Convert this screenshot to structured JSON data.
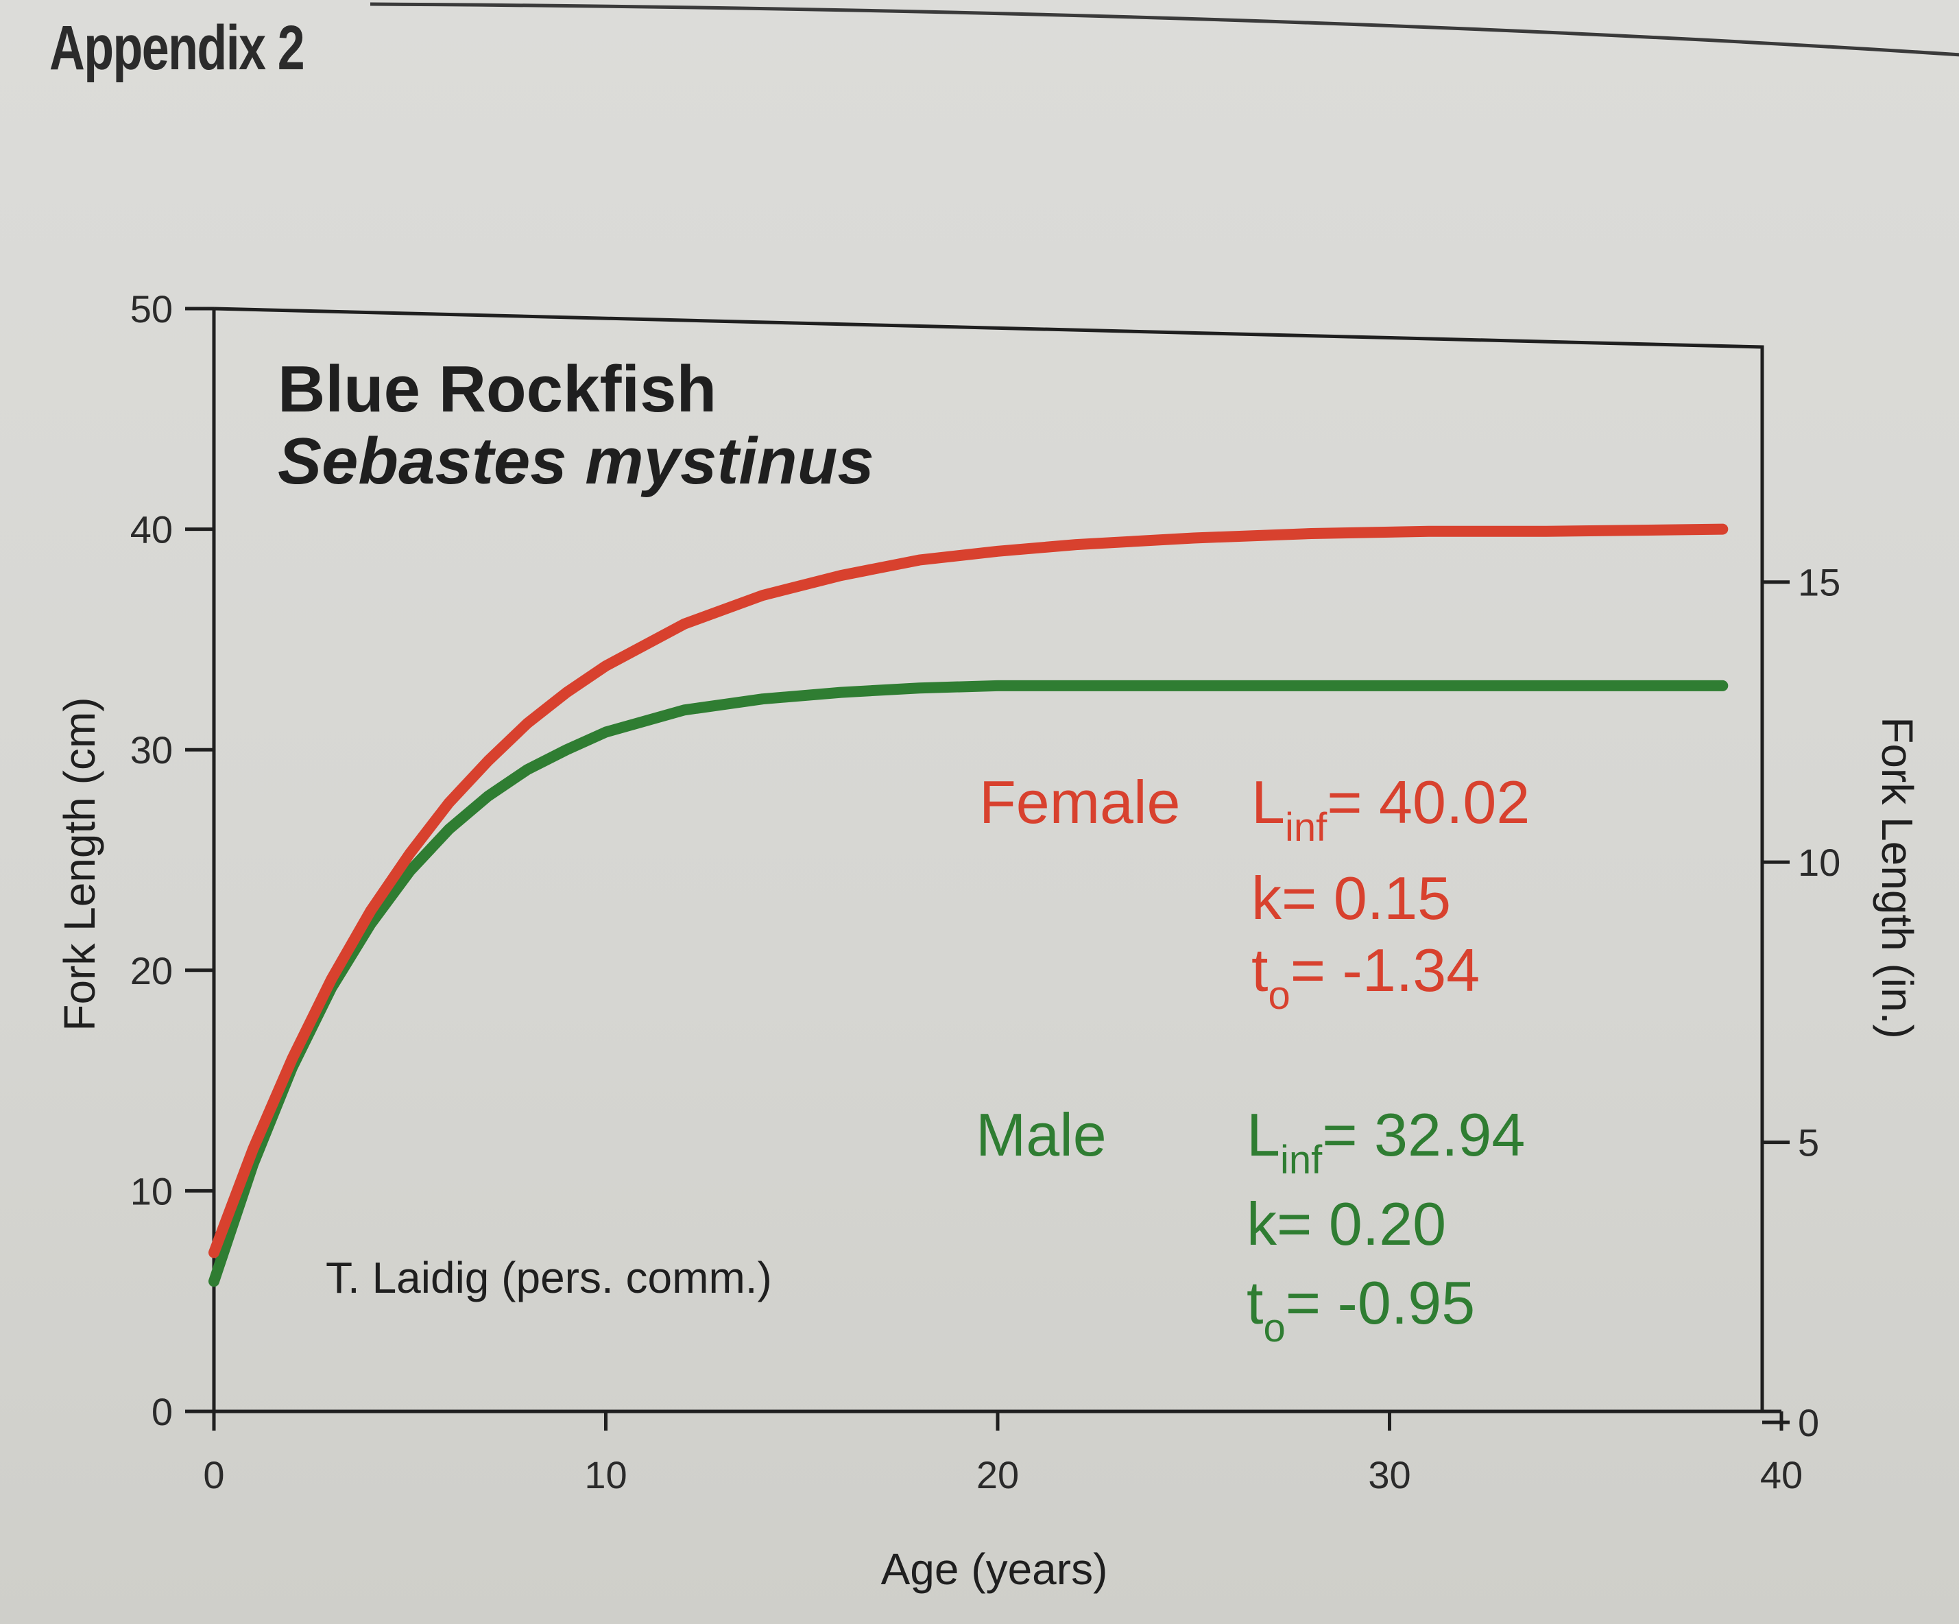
{
  "page": {
    "heading": "Appendix 2"
  },
  "colors": {
    "female": "#d8412e",
    "male": "#2f7d32",
    "axis": "#1f1f1f"
  },
  "chart_data": {
    "type": "line",
    "title": "Blue Rockfish",
    "subtitle": "Sebastes mystinus",
    "xlabel": "Age (years)",
    "ylabel": "Fork Length (cm)",
    "ylabel_right": "Fork Length (in.)",
    "xlim": [
      0,
      40
    ],
    "ylim": [
      0,
      50
    ],
    "ylim_right_in": [
      0,
      19.685
    ],
    "x_ticks": [
      "0",
      "10",
      "20",
      "30",
      "40"
    ],
    "y_ticks": [
      "0",
      "10",
      "20",
      "30",
      "40",
      "50"
    ],
    "y_right_ticks": [
      "0",
      "5",
      "10",
      "15"
    ],
    "grid": false,
    "series": [
      {
        "name": "Female",
        "color": "#d8412e",
        "x": [
          0,
          1,
          2,
          3,
          4,
          5,
          6,
          7,
          8,
          9,
          10,
          12,
          14,
          16,
          18,
          20,
          22,
          25,
          28,
          31,
          34,
          38.5
        ],
        "y": [
          7.2,
          11.9,
          16.0,
          19.6,
          22.7,
          25.3,
          27.6,
          29.5,
          31.2,
          32.6,
          33.8,
          35.7,
          37.0,
          37.9,
          38.6,
          39.0,
          39.3,
          39.6,
          39.8,
          39.9,
          39.9,
          40.0
        ]
      },
      {
        "name": "Male",
        "color": "#2f7d32",
        "x": [
          0,
          1,
          2,
          3,
          4,
          5,
          6,
          7,
          8,
          9,
          10,
          12,
          14,
          16,
          18,
          20,
          22,
          25,
          28,
          31,
          34,
          38.5
        ],
        "y": [
          5.9,
          11.2,
          15.6,
          19.2,
          22.1,
          24.5,
          26.4,
          27.9,
          29.1,
          30.0,
          30.8,
          31.8,
          32.3,
          32.6,
          32.8,
          32.9,
          32.9,
          32.9,
          32.9,
          32.9,
          32.9,
          32.9
        ]
      }
    ],
    "annotations": {
      "female_label": "Female",
      "female_linf_sym": "L",
      "female_linf_sub": "inf",
      "female_linf_val": "= 40.02",
      "female_k": "k= 0.15",
      "female_t0_sym": "t",
      "female_t0_sub": "o",
      "female_t0_val": "= -1.34",
      "male_label": "Male",
      "male_linf_sym": "L",
      "male_linf_sub": "inf",
      "male_linf_val": "= 32.94",
      "male_k": "k= 0.20",
      "male_t0_sym": "t",
      "male_t0_sub": "o",
      "male_t0_val": "= -0.95",
      "credit": "T. Laidig (pers. comm.)"
    }
  }
}
